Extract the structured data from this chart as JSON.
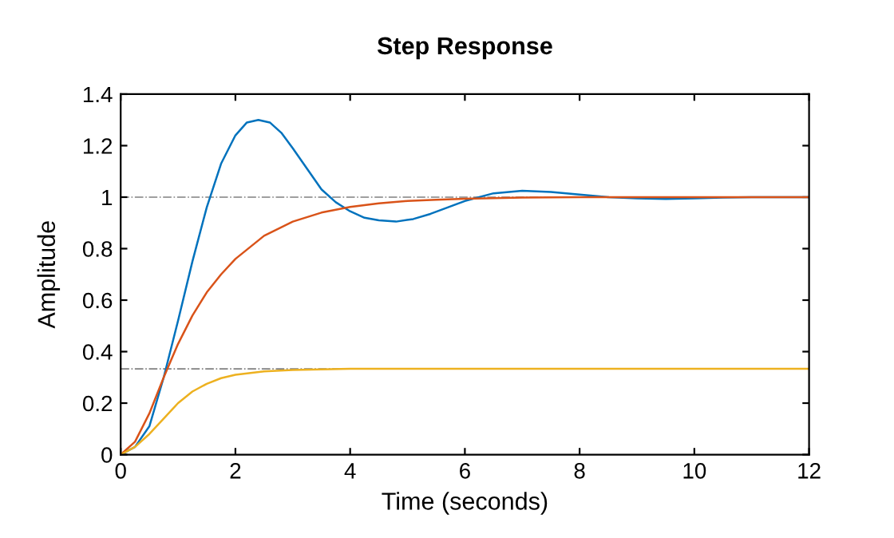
{
  "chart_data": {
    "type": "line",
    "title": "Step Response",
    "xlabel": "Time (seconds)",
    "ylabel": "Amplitude",
    "xlim": [
      0,
      12
    ],
    "ylim": [
      0,
      1.4
    ],
    "xticks": [
      0,
      2,
      4,
      6,
      8,
      10,
      12
    ],
    "yticks": [
      0,
      0.2,
      0.4,
      0.6,
      0.8,
      1,
      1.2,
      1.4
    ],
    "grid": false,
    "legend": false,
    "marker": "none",
    "line_style": "solid",
    "series": [
      {
        "color": "#0072bd",
        "x": [
          0,
          0.25,
          0.5,
          0.75,
          1,
          1.25,
          1.5,
          1.75,
          2,
          2.2,
          2.4,
          2.6,
          2.8,
          3,
          3.25,
          3.5,
          3.75,
          4,
          4.25,
          4.5,
          4.8,
          5.1,
          5.4,
          5.7,
          6,
          6.5,
          7,
          7.5,
          8,
          8.5,
          9,
          9.5,
          10,
          10.5,
          11,
          12
        ],
        "values": [
          0,
          0.03,
          0.11,
          0.3,
          0.52,
          0.75,
          0.96,
          1.13,
          1.24,
          1.29,
          1.3,
          1.29,
          1.25,
          1.19,
          1.11,
          1.03,
          0.98,
          0.945,
          0.92,
          0.91,
          0.905,
          0.915,
          0.935,
          0.96,
          0.985,
          1.015,
          1.025,
          1.02,
          1.01,
          1.0,
          0.995,
          0.993,
          0.995,
          0.998,
          1.0,
          1.0
        ]
      },
      {
        "color": "#d95319",
        "x": [
          0,
          0.25,
          0.5,
          0.75,
          1,
          1.25,
          1.5,
          1.75,
          2,
          2.5,
          3,
          3.5,
          4,
          4.5,
          5,
          5.5,
          6,
          7,
          8,
          10,
          12
        ],
        "values": [
          0,
          0.05,
          0.16,
          0.3,
          0.43,
          0.54,
          0.63,
          0.7,
          0.76,
          0.85,
          0.905,
          0.94,
          0.962,
          0.976,
          0.985,
          0.99,
          0.994,
          0.998,
          1.0,
          1.0,
          1.0
        ]
      },
      {
        "color": "#edb120",
        "x": [
          0,
          0.25,
          0.5,
          0.75,
          1,
          1.25,
          1.5,
          1.75,
          2,
          2.5,
          3,
          3.5,
          4,
          6,
          8,
          10,
          12
        ],
        "values": [
          0,
          0.03,
          0.08,
          0.14,
          0.2,
          0.245,
          0.275,
          0.297,
          0.31,
          0.323,
          0.329,
          0.331,
          0.333,
          0.333,
          0.333,
          0.333,
          0.333
        ]
      }
    ],
    "ref_lines": [
      {
        "axis": "y",
        "value": 1,
        "color": "#808080",
        "line_style": "dashdot"
      },
      {
        "axis": "y",
        "value": 0.333,
        "color": "#808080",
        "line_style": "dashdot"
      }
    ]
  }
}
